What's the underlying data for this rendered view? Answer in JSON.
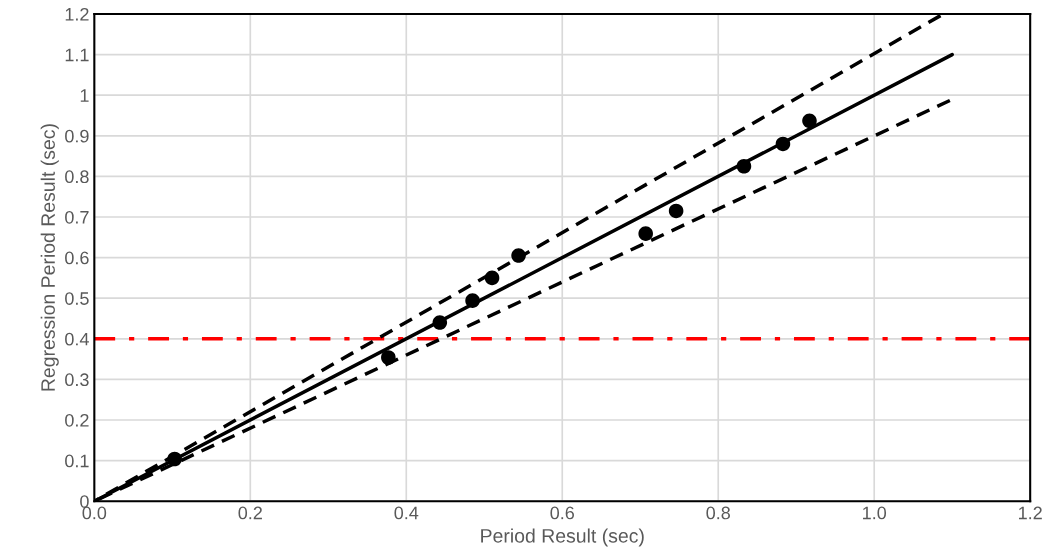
{
  "chart_data": {
    "type": "scatter",
    "xlabel": "Period Result (sec)",
    "ylabel": "Regression Period Result (sec)",
    "series": [
      {
        "color": "#000000",
        "marker": "circle",
        "x": [
          0.103,
          0.377,
          0.443,
          0.485,
          0.51,
          0.544,
          0.707,
          0.746,
          0.833,
          0.883,
          0.917
        ],
        "values": [
          0.104,
          0.354,
          0.44,
          0.494,
          0.55,
          0.605,
          0.659,
          0.715,
          0.825,
          0.88,
          0.937
        ]
      },
      {
        "type": "line",
        "color": "#000000",
        "line_style": "solid",
        "x": [
          0,
          1.1
        ],
        "values": [
          0,
          1.1
        ]
      },
      {
        "type": "line",
        "color": "#000000",
        "line_style": "dashed",
        "x": [
          1.085,
          0
        ],
        "values": [
          1.196,
          0
        ]
      },
      {
        "type": "line",
        "color": "#000000",
        "line_style": "dashed",
        "x": [
          1.097,
          0
        ],
        "values": [
          0.987,
          0
        ]
      }
    ],
    "ref_lines": [
      {
        "axis": "y",
        "value": 0.4,
        "color": "#ff0000",
        "line_style": "dashdot"
      }
    ],
    "xlim": [
      0,
      1.2
    ],
    "ylim": [
      0,
      1.2
    ],
    "xticks": [
      {
        "value": 0,
        "label": "0.0"
      },
      {
        "value": 0.2,
        "label": "0.2"
      },
      {
        "value": 0.4,
        "label": "0.4"
      },
      {
        "value": 0.6,
        "label": "0.6"
      },
      {
        "value": 0.8,
        "label": "0.8"
      },
      {
        "value": 1.0,
        "label": "1.0"
      },
      {
        "value": 1.2,
        "label": "1.2"
      }
    ],
    "yticks": [
      0,
      0.1,
      0.2,
      0.3,
      0.4,
      0.5,
      0.6,
      0.7,
      0.8,
      0.9,
      1,
      1.1,
      1.2
    ],
    "grid": true,
    "legend": false
  }
}
